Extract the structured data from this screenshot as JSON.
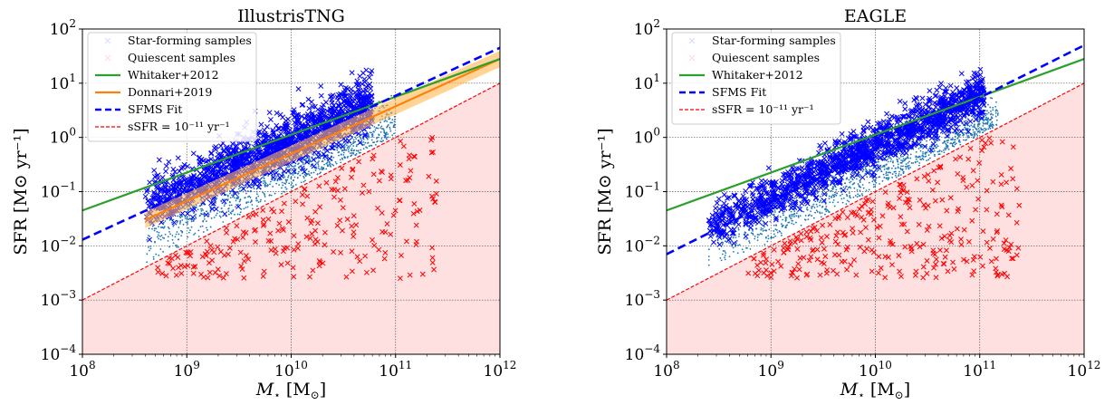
{
  "chart_data": [
    {
      "type": "scatter",
      "title": "IllustrisTNG",
      "xlabel": "M⋆ [M⊙]",
      "ylabel": "SFR [M⊙ yr⁻¹]",
      "xscale": "log",
      "yscale": "log",
      "xlim": [
        100000000.0,
        1000000000000.0
      ],
      "ylim": [
        0.0001,
        100.0
      ],
      "x_tick_labels": [
        {
          "base": "10",
          "exp": "8"
        },
        {
          "base": "10",
          "exp": "9"
        },
        {
          "base": "10",
          "exp": "10"
        },
        {
          "base": "10",
          "exp": "11"
        },
        {
          "base": "10",
          "exp": "12"
        }
      ],
      "y_tick_labels": [
        {
          "base": "10",
          "exp": "−4"
        },
        {
          "base": "10",
          "exp": "−3"
        },
        {
          "base": "10",
          "exp": "−2"
        },
        {
          "base": "10",
          "exp": "−1"
        },
        {
          "base": "10",
          "exp": "0"
        },
        {
          "base": "10",
          "exp": "1"
        },
        {
          "base": "10",
          "exp": "2"
        }
      ],
      "grid": true,
      "legend_position": "top-left",
      "legend": [
        {
          "label": "Star-forming samples",
          "marker": "x",
          "color": "#0000ff"
        },
        {
          "label": "Quiescent samples",
          "marker": "x",
          "color": "#ff0000"
        },
        {
          "label": "Whitaker+2012",
          "line": "solid",
          "color": "#2ca02c"
        },
        {
          "label": "Donnari+2019",
          "line": "solid",
          "color": "#ff7f0e"
        },
        {
          "label": "SFMS Fit",
          "line": "dashed",
          "color": "#0000ff"
        },
        {
          "label": "sSFR = 10⁻¹¹ yr⁻¹",
          "line": "dashed",
          "color": "#ff0000"
        }
      ],
      "lines": {
        "whitaker_2012": {
          "x": [
            100000000.0,
            1000000000000.0
          ],
          "y": [
            0.045,
            28
          ]
        },
        "donnari_2019": {
          "x": [
            400000000.0,
            1000000000000.0
          ],
          "y": [
            0.03,
            28
          ],
          "band_dex": 0.15
        },
        "sfms_fit": {
          "x": [
            100000000.0,
            1000000000000.0
          ],
          "y": [
            0.013,
            45
          ]
        },
        "ssfr_threshold": {
          "x": [
            100000000.0,
            1000000000000.0
          ],
          "y": [
            0.001,
            10
          ]
        }
      },
      "populations": {
        "star_forming": {
          "x_range": [
            400000000.0,
            60000000000.0
          ],
          "log_ridge_slope": 0.88,
          "ridge_at_1e10": 0.9,
          "scatter_dex": 0.25,
          "count_shown": 1500
        },
        "main_sequence_points": {
          "x_range": [
            400000000.0,
            100000000000.0
          ],
          "ridge_at_1e10": 0.25,
          "scatter_dex": 0.25,
          "count_shown": 1100
        },
        "quiescent": {
          "x_range": [
            500000000.0,
            250000000000.0
          ],
          "approx_y_range": [
            0.001,
            1.0
          ],
          "count_shown": 230
        }
      },
      "colors": {
        "star_forming": "#0000ff",
        "main_sequence_points": "#1f77b4",
        "quiescent": "#ff0000",
        "quiescent_region": "#ffe0e0",
        "whitaker": "#2ca02c",
        "donnari": "#ff7f0e",
        "donnari_band": "#ffb74d"
      }
    },
    {
      "type": "scatter",
      "title": "EAGLE",
      "xlabel": "M⋆ [M⊙]",
      "ylabel": "SFR [M⊙ yr⁻¹]",
      "xscale": "log",
      "yscale": "log",
      "xlim": [
        100000000.0,
        1000000000000.0
      ],
      "ylim": [
        0.0001,
        100.0
      ],
      "x_tick_labels": [
        {
          "base": "10",
          "exp": "8"
        },
        {
          "base": "10",
          "exp": "9"
        },
        {
          "base": "10",
          "exp": "10"
        },
        {
          "base": "10",
          "exp": "11"
        },
        {
          "base": "10",
          "exp": "12"
        }
      ],
      "y_tick_labels": [
        {
          "base": "10",
          "exp": "−4"
        },
        {
          "base": "10",
          "exp": "−3"
        },
        {
          "base": "10",
          "exp": "−2"
        },
        {
          "base": "10",
          "exp": "−1"
        },
        {
          "base": "10",
          "exp": "0"
        },
        {
          "base": "10",
          "exp": "1"
        },
        {
          "base": "10",
          "exp": "2"
        }
      ],
      "grid": true,
      "legend_position": "top-left",
      "legend": [
        {
          "label": "Star-forming samples",
          "marker": "x",
          "color": "#0000ff"
        },
        {
          "label": "Quiescent samples",
          "marker": "x",
          "color": "#ff0000"
        },
        {
          "label": "Whitaker+2012",
          "line": "solid",
          "color": "#2ca02c"
        },
        {
          "label": "SFMS Fit",
          "line": "dashed",
          "color": "#0000ff"
        },
        {
          "label": "sSFR = 10⁻¹¹ yr⁻¹",
          "line": "dashed",
          "color": "#ff0000"
        }
      ],
      "lines": {
        "whitaker_2012": {
          "x": [
            100000000.0,
            1000000000000.0
          ],
          "y": [
            0.045,
            28
          ]
        },
        "sfms_fit": {
          "x": [
            100000000.0,
            1000000000000.0
          ],
          "y": [
            0.007,
            50
          ]
        },
        "ssfr_threshold": {
          "x": [
            100000000.0,
            1000000000000.0
          ],
          "y": [
            0.001,
            10
          ]
        }
      },
      "populations": {
        "star_forming": {
          "x_range": [
            250000000.0,
            110000000000.0
          ],
          "log_ridge_slope": 0.95,
          "ridge_at_1e10": 0.7,
          "scatter_dex": 0.2,
          "count_shown": 1500
        },
        "main_sequence_points": {
          "x_range": [
            250000000.0,
            150000000000.0
          ],
          "ridge_at_1e10": 0.22,
          "scatter_dex": 0.22,
          "count_shown": 1100
        },
        "quiescent": {
          "x_range": [
            600000000.0,
            250000000000.0
          ],
          "approx_y_range": [
            0.001,
            1.0
          ],
          "count_shown": 300
        }
      },
      "colors": {
        "star_forming": "#0000ff",
        "main_sequence_points": "#1f77b4",
        "quiescent": "#ff0000",
        "quiescent_region": "#ffe0e0",
        "whitaker": "#2ca02c",
        "donnari": "#ff7f0e",
        "donnari_band": "#ffb74d"
      }
    }
  ]
}
